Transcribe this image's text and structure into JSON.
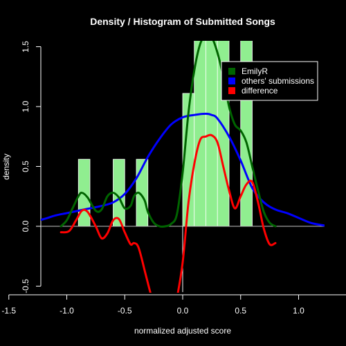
{
  "chart_data": {
    "type": "histogram-density",
    "title": "Density / Histogram of Submitted Songs",
    "xlabel": "normalized adjusted score",
    "ylabel": "density",
    "xlim": [
      -1.85,
      1.75
    ],
    "ylim": [
      -0.55,
      1.6
    ],
    "x_ticks": [
      -1.5,
      -1.0,
      -0.5,
      0.0,
      0.5,
      1.0,
      1.5
    ],
    "x_tick_labels": [
      "-1.5",
      "-1.0",
      "-0.5",
      "0.0",
      "0.5",
      "1.0",
      "1.5"
    ],
    "y_ticks": [
      -0.5,
      0.0,
      0.5,
      1.0,
      1.5
    ],
    "y_tick_labels": [
      "-0.5",
      "0.0",
      "0.5",
      "1.0",
      "1.5"
    ],
    "grid": false,
    "legend_position": "top-right",
    "colors": {
      "background": "#000000",
      "histogram": "#90ee90",
      "emilyr": "#006400",
      "others": "#0000ff",
      "difference": "#ff0000",
      "zero_line": "#c8c8c8"
    },
    "histogram": {
      "bin_width": 0.1,
      "bins": [
        {
          "x0": -0.9,
          "x1": -0.8,
          "density": 0.56
        },
        {
          "x0": -0.6,
          "x1": -0.5,
          "density": 0.56
        },
        {
          "x0": -0.4,
          "x1": -0.3,
          "density": 0.56
        },
        {
          "x0": 0.0,
          "x1": 0.1,
          "density": 1.11
        },
        {
          "x0": 0.1,
          "x1": 0.2,
          "density": 1.6
        },
        {
          "x0": 0.2,
          "x1": 0.3,
          "density": 1.6
        },
        {
          "x0": 0.3,
          "x1": 0.4,
          "density": 1.6
        },
        {
          "x0": 0.5,
          "x1": 0.6,
          "density": 1.6
        }
      ]
    },
    "series": [
      {
        "name": "EmilyR",
        "color": "#006400",
        "x": [
          -1.05,
          -1.0,
          -0.95,
          -0.9,
          -0.87,
          -0.82,
          -0.75,
          -0.7,
          -0.65,
          -0.6,
          -0.55,
          -0.5,
          -0.45,
          -0.42,
          -0.38,
          -0.33,
          -0.3,
          -0.25,
          -0.2,
          -0.15,
          -0.1,
          -0.05,
          0.0,
          0.05,
          0.1,
          0.15,
          0.2,
          0.25,
          0.3,
          0.35,
          0.4,
          0.45,
          0.5,
          0.55,
          0.6,
          0.65,
          0.7,
          0.75,
          0.8
        ],
        "y": [
          0.0,
          0.05,
          0.15,
          0.25,
          0.28,
          0.24,
          0.13,
          0.14,
          0.25,
          0.28,
          0.24,
          0.15,
          0.17,
          0.25,
          0.28,
          0.22,
          0.12,
          0.03,
          0.0,
          0.0,
          0.02,
          0.1,
          0.45,
          0.95,
          1.3,
          1.52,
          1.6,
          1.58,
          1.45,
          1.25,
          1.0,
          0.85,
          0.8,
          0.7,
          0.5,
          0.3,
          0.12,
          0.03,
          0.0
        ]
      },
      {
        "name": "others' submissions",
        "color": "#0000ff",
        "x": [
          -1.9,
          -1.7,
          -1.55,
          -1.4,
          -1.3,
          -1.2,
          -1.1,
          -1.0,
          -0.9,
          -0.8,
          -0.7,
          -0.6,
          -0.5,
          -0.4,
          -0.3,
          -0.2,
          -0.1,
          0.0,
          0.1,
          0.2,
          0.25,
          0.3,
          0.4,
          0.5,
          0.6,
          0.7,
          0.8,
          0.9,
          1.0,
          1.1,
          1.2,
          1.3,
          1.45,
          1.55
        ],
        "y": [
          0.0,
          0.0,
          0.02,
          0.02,
          0.04,
          0.06,
          0.09,
          0.11,
          0.13,
          0.15,
          0.17,
          0.2,
          0.27,
          0.4,
          0.58,
          0.73,
          0.85,
          0.91,
          0.93,
          0.94,
          0.93,
          0.9,
          0.75,
          0.55,
          0.32,
          0.2,
          0.14,
          0.11,
          0.07,
          0.03,
          0.01,
          0.0,
          0.0,
          0.0
        ]
      },
      {
        "name": "difference",
        "color": "#ff0000",
        "x": [
          -1.05,
          -0.98,
          -0.92,
          -0.87,
          -0.82,
          -0.75,
          -0.7,
          -0.65,
          -0.6,
          -0.55,
          -0.5,
          -0.45,
          -0.42,
          -0.38,
          -0.32,
          -0.28,
          -0.24,
          -0.2,
          -0.1,
          -0.05,
          0.0,
          0.05,
          0.1,
          0.15,
          0.2,
          0.25,
          0.3,
          0.35,
          0.4,
          0.45,
          0.5,
          0.55,
          0.6,
          0.65,
          0.7,
          0.75,
          0.8
        ],
        "y": [
          -0.05,
          -0.04,
          0.05,
          0.13,
          0.12,
          0.0,
          -0.1,
          -0.06,
          0.05,
          0.06,
          -0.05,
          -0.15,
          -0.14,
          -0.18,
          -0.4,
          -0.55,
          -0.68,
          -0.75,
          -0.8,
          -0.6,
          -0.3,
          0.2,
          0.52,
          0.72,
          0.75,
          0.76,
          0.7,
          0.5,
          0.3,
          0.15,
          0.25,
          0.35,
          0.37,
          0.2,
          -0.02,
          -0.15,
          -0.14
        ]
      }
    ]
  }
}
